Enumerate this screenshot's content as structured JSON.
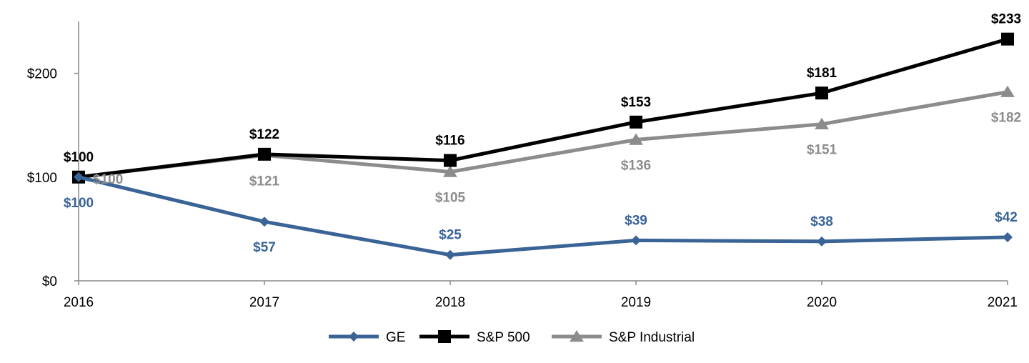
{
  "chart_data": {
    "type": "line",
    "title": "",
    "xlabel": "",
    "ylabel": "",
    "categories": [
      "2016",
      "2017",
      "2018",
      "2019",
      "2020",
      "2021"
    ],
    "ylim": [
      0,
      250
    ],
    "yticks": [
      0,
      100,
      200
    ],
    "ytick_labels": [
      "$0",
      "$100",
      "$200"
    ],
    "grid": false,
    "legend_position": "bottom-center",
    "series": [
      {
        "name": "GE",
        "color": "#3a6396",
        "marker": "diamond",
        "values": [
          100,
          57,
          25,
          39,
          38,
          42
        ],
        "labels": [
          "$100",
          "$57",
          "$25",
          "$39",
          "$38",
          "$42"
        ],
        "label_side": [
          "below",
          "below",
          "above",
          "above",
          "above",
          "above"
        ]
      },
      {
        "name": "S&P 500",
        "color": "#000000",
        "marker": "square",
        "values": [
          100,
          122,
          116,
          153,
          181,
          233
        ],
        "labels": [
          "$100",
          "$122",
          "$116",
          "$153",
          "$181",
          "$233"
        ],
        "label_side": [
          "above",
          "above",
          "above",
          "above",
          "above",
          "above"
        ]
      },
      {
        "name": "S&P Industrial",
        "color": "#8c8c8c",
        "marker": "triangle",
        "values": [
          100,
          121,
          105,
          136,
          151,
          182
        ],
        "labels": [
          "$100",
          "$121",
          "$105",
          "$136",
          "$151",
          "$182"
        ],
        "label_side": [
          "right",
          "below",
          "below",
          "below",
          "below",
          "below"
        ]
      }
    ]
  }
}
